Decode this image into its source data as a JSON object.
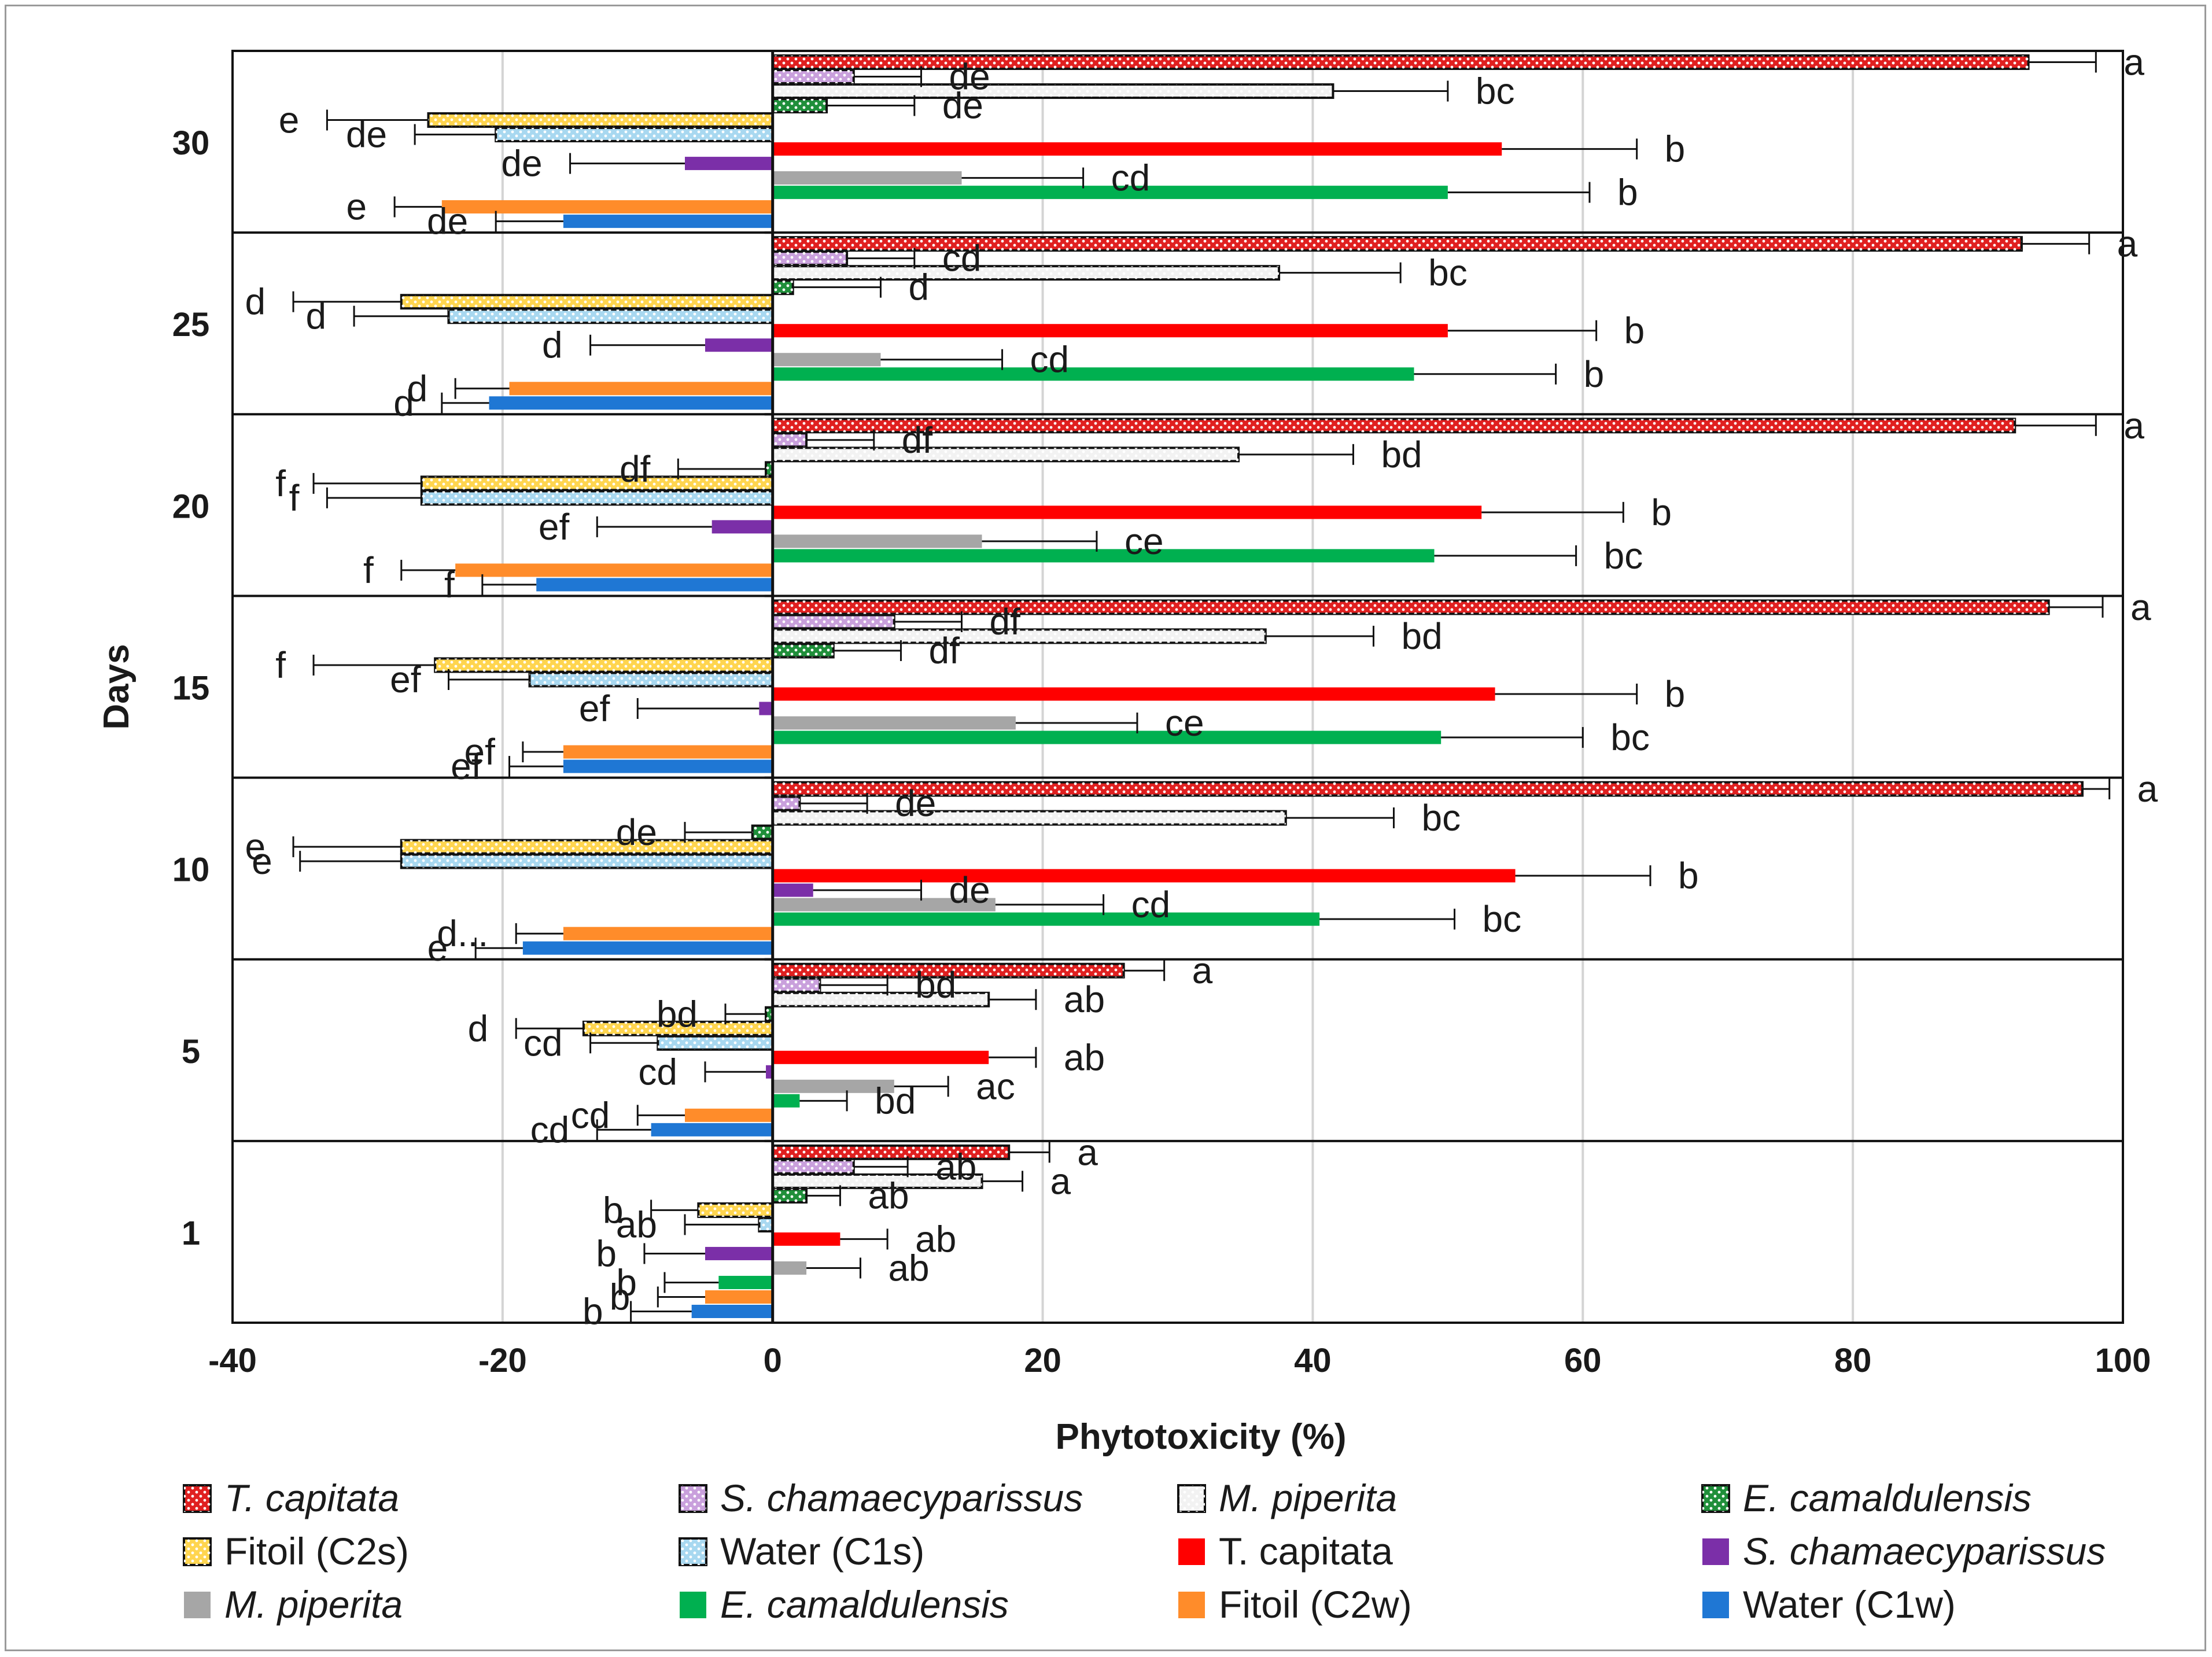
{
  "chart_data": {
    "type": "bar",
    "orientation": "horizontal",
    "xlabel": "Phytotoxicity (%)",
    "ylabel": "Days",
    "xlim": [
      -40,
      100
    ],
    "xticks": [
      "-40",
      "-20",
      "0",
      "20",
      "40",
      "60",
      "80",
      "100"
    ],
    "categories": [
      "30",
      "25",
      "20",
      "15",
      "10",
      "5",
      "1"
    ],
    "grid": "vertical",
    "legend_position": "bottom",
    "series": [
      {
        "name": "T. capitata",
        "italic": true,
        "pattern": "dots",
        "color": "#e02020",
        "values": [
          93,
          92.5,
          92,
          94.5,
          97,
          26,
          17.5
        ],
        "errors": [
          5,
          5,
          6,
          4,
          2,
          3,
          3
        ],
        "letters": [
          "a",
          "a",
          "a",
          "a",
          "a",
          "a",
          "a"
        ]
      },
      {
        "name": "S. chamaecyparissus",
        "italic": true,
        "pattern": "dots",
        "color": "#c9a0dc",
        "values": [
          6,
          5.5,
          2.5,
          9,
          2,
          3.5,
          6
        ],
        "errors": [
          5,
          5,
          5,
          5,
          5,
          5,
          4
        ],
        "letters": [
          "de",
          "cd",
          "df",
          "df",
          "de",
          "bd",
          "ab"
        ]
      },
      {
        "name": "M. piperita",
        "italic": true,
        "pattern": "dots",
        "color": "#f2f2f2",
        "values": [
          41.5,
          37.5,
          34.5,
          36.5,
          38,
          16,
          15.5
        ],
        "errors": [
          8.5,
          9,
          8.5,
          8,
          8,
          3.5,
          3
        ],
        "letters": [
          "bc",
          "bc",
          "bd",
          "bd",
          "bc",
          "ab",
          "a"
        ]
      },
      {
        "name": "E. camaldulensis",
        "italic": true,
        "pattern": "dots",
        "color": "#1f8f3a",
        "values": [
          4,
          1.5,
          -0.5,
          4.5,
          -1.5,
          -0.5,
          2.5
        ],
        "errors": [
          6.5,
          6.5,
          6.5,
          5,
          5,
          3,
          2.5
        ],
        "letters": [
          "de",
          "d",
          "df",
          "df",
          "de",
          "bd",
          "ab"
        ]
      },
      {
        "name": "Fitoil (C2s)",
        "italic": false,
        "pattern": "dots",
        "color": "#ffd54f",
        "values": [
          -25.5,
          -27.5,
          -26,
          -25,
          -27.5,
          -14,
          -5.5
        ],
        "errors": [
          7.5,
          8,
          8,
          9,
          8,
          5,
          3.5
        ],
        "letters": [
          "e",
          "d",
          "f",
          "f",
          "e",
          "d",
          "b"
        ]
      },
      {
        "name": "Water (C1s)",
        "italic": false,
        "pattern": "dots",
        "color": "#a8d8f0",
        "values": [
          -20.5,
          -24,
          -26,
          -18,
          -27.5,
          -8.5,
          -1
        ],
        "errors": [
          6,
          7,
          7,
          6,
          7.5,
          5,
          5.5
        ],
        "letters": [
          "de",
          "d",
          "f",
          "ef",
          "e",
          "cd",
          "ab"
        ]
      },
      {
        "name": "T. capitata",
        "italic": false,
        "pattern": "solid",
        "color": "#ff0000",
        "values": [
          54,
          50,
          52.5,
          53.5,
          55,
          16,
          5
        ],
        "errors": [
          10,
          11,
          10.5,
          10.5,
          10,
          3.5,
          3.5
        ],
        "letters": [
          "b",
          "b",
          "b",
          "b",
          "b",
          "ab",
          "ab"
        ]
      },
      {
        "name": "S. chamaecyparissus",
        "italic": true,
        "pattern": "solid",
        "color": "#7b2fa8",
        "values": [
          -6.5,
          -5,
          -4.5,
          -1,
          3,
          -0.5,
          -5
        ],
        "errors": [
          8.5,
          8.5,
          8.5,
          9,
          8,
          4.5,
          4.5
        ],
        "letters": [
          "de",
          "d",
          "ef",
          "ef",
          "de",
          "cd",
          "b"
        ]
      },
      {
        "name": "M. piperita",
        "italic": true,
        "pattern": "solid",
        "color": "#a6a6a6",
        "values": [
          14,
          8,
          15.5,
          18,
          16.5,
          9,
          2.5
        ],
        "errors": [
          9,
          9,
          8.5,
          9,
          8,
          4,
          4
        ],
        "letters": [
          "cd",
          "cd",
          "ce",
          "ce",
          "cd",
          "ac",
          "ab"
        ]
      },
      {
        "name": "E. camaldulensis",
        "italic": true,
        "pattern": "solid",
        "color": "#00b050",
        "values": [
          50,
          47.5,
          49,
          49.5,
          40.5,
          2,
          -4
        ],
        "errors": [
          10.5,
          10.5,
          10.5,
          10.5,
          10,
          3.5,
          4
        ],
        "letters": [
          "b",
          "b",
          "bc",
          "bc",
          "bc",
          "bd",
          "b"
        ]
      },
      {
        "name": "Fitoil (C2w)",
        "italic": false,
        "pattern": "solid",
        "color": "#ff8c2a",
        "values": [
          -24.5,
          -19.5,
          -23.5,
          -15.5,
          -15.5,
          -6.5,
          -5
        ],
        "errors": [
          3.5,
          4,
          4,
          3,
          3.5,
          3.5,
          3.5
        ],
        "letters": [
          "e",
          "d",
          "f",
          "ef",
          "d...",
          "cd",
          "b"
        ]
      },
      {
        "name": "Water (C1w)",
        "italic": false,
        "pattern": "solid",
        "color": "#1f77d4",
        "values": [
          -15.5,
          -21,
          -17.5,
          -15.5,
          -18.5,
          -9,
          -6
        ],
        "errors": [
          5,
          3.5,
          4,
          4,
          3.5,
          4,
          4.5
        ],
        "letters": [
          "de",
          "d",
          "f",
          "ef",
          "e",
          "cd",
          "b"
        ]
      }
    ]
  }
}
